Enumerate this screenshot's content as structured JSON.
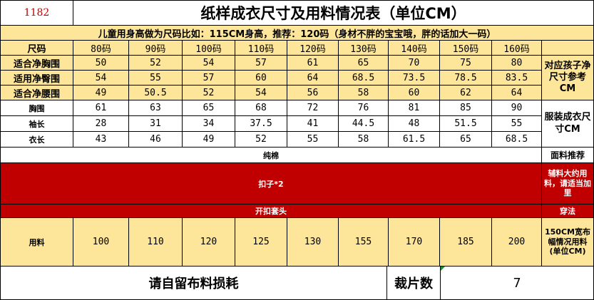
{
  "header": {
    "code": "1182",
    "title": "纸样成衣尺寸及用料情况表（单位CM）"
  },
  "note": "儿童用身高做为尺码比如：115CM身高，推荐：120码（身材不胖的宝宝哦，胖的话加大一码）",
  "size_label": "尺码",
  "sizes": [
    "80码",
    "90码",
    "100码",
    "110码",
    "120码",
    "130码",
    "140码",
    "150码",
    "160码"
  ],
  "body_measurements": {
    "side_label": "对应孩子净尺寸参考CM",
    "rows": [
      {
        "label": "适合净胸围",
        "values": [
          "50",
          "52",
          "54",
          "57",
          "61",
          "65",
          "70",
          "75",
          "80"
        ]
      },
      {
        "label": "适用净臀围",
        "values": [
          "54",
          "55",
          "57",
          "60",
          "64",
          "68.5",
          "73.5",
          "78.5",
          "83.5"
        ]
      },
      {
        "label": "适合净腰围",
        "values": [
          "49",
          "50.5",
          "52",
          "54",
          "56",
          "58",
          "60",
          "62",
          "64"
        ]
      }
    ]
  },
  "garment": {
    "side_label": "服装成衣尺寸CM",
    "rows": [
      {
        "label": "胸围",
        "values": [
          "61",
          "63",
          "65",
          "68",
          "72",
          "76",
          "81",
          "85",
          "90"
        ]
      },
      {
        "label": "袖长",
        "values": [
          "28",
          "31",
          "34",
          "37.5",
          "41",
          "44.5",
          "48",
          "51.5",
          "55"
        ]
      },
      {
        "label": "衣长",
        "values": [
          "43",
          "46",
          "49",
          "52",
          "55",
          "58",
          "61.5",
          "65",
          "68.5"
        ]
      }
    ]
  },
  "fabric": {
    "value": "纯棉",
    "label": "面料推荐"
  },
  "accessory": {
    "value": "扣子*2",
    "label": "辅料大约用料，请适当加里"
  },
  "method": {
    "value": "开扣套头",
    "label": "穿法"
  },
  "usage": {
    "label": "用料",
    "values": [
      "100",
      "110",
      "120",
      "125",
      "130",
      "155",
      "170",
      "185",
      "200"
    ],
    "side_label": "150CM宽布幅情况用料(单位CM)"
  },
  "footer": {
    "loss_note": "请自留布料损耗",
    "pieces_label": "裁片数",
    "pieces_value": "7"
  },
  "colors": {
    "header_yellow": "#fde599",
    "accent_red": "#c00000",
    "title_code_red": "#c00000",
    "border": "#000000"
  }
}
